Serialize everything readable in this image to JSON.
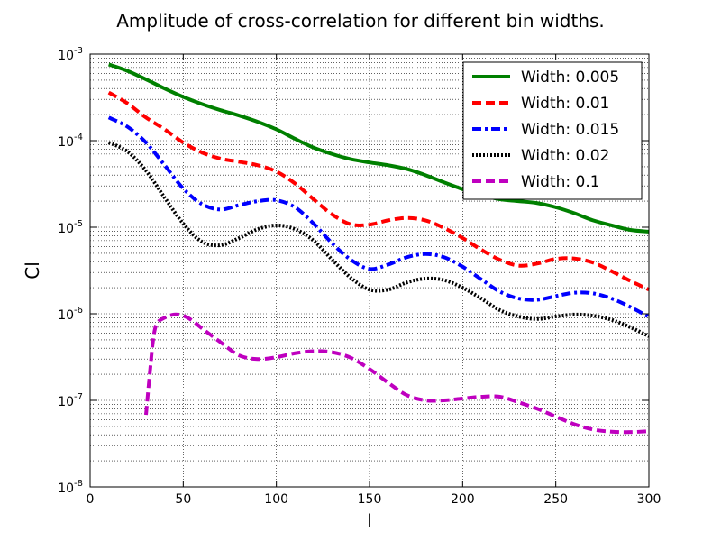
{
  "chart_data": {
    "type": "line",
    "title": "Amplitude of cross-correlation for different bin widths.",
    "xlabel": "l",
    "ylabel": "Cl",
    "xscale": "linear",
    "yscale": "log",
    "xlim": [
      0,
      300
    ],
    "ylim": [
      1e-08,
      0.001
    ],
    "grid": true,
    "legend_position": "top-right",
    "x_ticks": [
      0,
      50,
      100,
      150,
      200,
      250,
      300
    ],
    "x_tick_labels": [
      "0",
      "50",
      "100",
      "150",
      "200",
      "250",
      "300"
    ],
    "y_ticks": [
      {
        "value": 1e-08,
        "base": "10",
        "exp": "-8"
      },
      {
        "value": 1e-07,
        "base": "10",
        "exp": "-7"
      },
      {
        "value": 1e-06,
        "base": "10",
        "exp": "-6"
      },
      {
        "value": 1e-05,
        "base": "10",
        "exp": "-5"
      },
      {
        "value": 0.0001,
        "base": "10",
        "exp": "-4"
      },
      {
        "value": 0.001,
        "base": "10",
        "exp": "-3"
      }
    ],
    "series": [
      {
        "name": "Width: 0.005",
        "color": "#008000",
        "dash": "solid",
        "x": [
          10,
          20,
          30,
          40,
          50,
          60,
          70,
          80,
          90,
          100,
          110,
          120,
          130,
          140,
          150,
          160,
          170,
          180,
          190,
          200,
          210,
          220,
          230,
          240,
          250,
          260,
          270,
          280,
          290,
          300
        ],
        "y": [
          0.00076,
          0.00064,
          0.00051,
          0.0004,
          0.00032,
          0.000265,
          0.000225,
          0.000195,
          0.000165,
          0.000135,
          0.000105,
          8.3e-05,
          7e-05,
          6.1e-05,
          5.6e-05,
          5.2e-05,
          4.7e-05,
          4e-05,
          3.3e-05,
          2.75e-05,
          2.35e-05,
          2.1e-05,
          2e-05,
          1.9e-05,
          1.7e-05,
          1.45e-05,
          1.2e-05,
          1.05e-05,
          9.3e-06,
          8.9e-06
        ]
      },
      {
        "name": "Width: 0.01",
        "color": "#ff0000",
        "dash": "dashed",
        "x": [
          10,
          20,
          30,
          40,
          50,
          60,
          70,
          80,
          90,
          100,
          110,
          120,
          130,
          140,
          150,
          160,
          170,
          180,
          190,
          200,
          210,
          220,
          230,
          240,
          250,
          260,
          270,
          280,
          290,
          300
        ],
        "y": [
          0.00036,
          0.00027,
          0.000185,
          0.000135,
          9.5e-05,
          7.3e-05,
          6.2e-05,
          5.7e-05,
          5.2e-05,
          4.4e-05,
          3.2e-05,
          2.1e-05,
          1.4e-05,
          1.08e-05,
          1.07e-05,
          1.2e-05,
          1.28e-05,
          1.2e-05,
          9.8e-06,
          7.5e-06,
          5.5e-06,
          4.2e-06,
          3.6e-06,
          3.8e-06,
          4.3e-06,
          4.35e-06,
          3.9e-06,
          3.1e-06,
          2.4e-06,
          1.9e-06
        ]
      },
      {
        "name": "Width: 0.015",
        "color": "#0000ff",
        "dash": "dashdot",
        "x": [
          10,
          20,
          30,
          40,
          50,
          60,
          70,
          80,
          90,
          100,
          110,
          120,
          130,
          140,
          150,
          160,
          170,
          180,
          190,
          200,
          210,
          220,
          230,
          240,
          250,
          260,
          270,
          280,
          290,
          300
        ],
        "y": [
          0.000185,
          0.000145,
          9.5e-05,
          5.2e-05,
          2.8e-05,
          1.85e-05,
          1.6e-05,
          1.8e-05,
          2e-05,
          2.05e-05,
          1.7e-05,
          1.1e-05,
          6.5e-06,
          4.2e-06,
          3.3e-06,
          3.7e-06,
          4.5e-06,
          4.9e-06,
          4.5e-06,
          3.5e-06,
          2.5e-06,
          1.8e-06,
          1.5e-06,
          1.45e-06,
          1.6e-06,
          1.75e-06,
          1.72e-06,
          1.5e-06,
          1.2e-06,
          9.2e-07
        ]
      },
      {
        "name": "Width: 0.02",
        "color": "#000000",
        "dash": "dotted",
        "x": [
          10,
          20,
          30,
          40,
          50,
          60,
          70,
          80,
          90,
          100,
          110,
          120,
          130,
          140,
          150,
          160,
          170,
          180,
          190,
          200,
          210,
          220,
          230,
          240,
          250,
          260,
          270,
          280,
          290,
          300
        ],
        "y": [
          9.5e-05,
          7.5e-05,
          4.5e-05,
          2.2e-05,
          1.1e-05,
          6.8e-06,
          6.2e-06,
          7.5e-06,
          9.5e-06,
          1.05e-05,
          9.5e-06,
          7e-06,
          4.2e-06,
          2.6e-06,
          1.9e-06,
          1.9e-06,
          2.3e-06,
          2.55e-06,
          2.45e-06,
          2e-06,
          1.5e-06,
          1.1e-06,
          9.3e-07,
          8.7e-07,
          9.3e-07,
          9.8e-07,
          9.5e-07,
          8.5e-07,
          7e-07,
          5.5e-07
        ]
      },
      {
        "name": "Width: 0.1",
        "color": "#bf00bf",
        "dash": "dashed",
        "x": [
          30,
          32,
          34,
          36,
          40,
          45,
          50,
          55,
          60,
          70,
          80,
          90,
          100,
          110,
          120,
          130,
          140,
          150,
          160,
          170,
          180,
          190,
          200,
          210,
          220,
          230,
          240,
          250,
          260,
          270,
          280,
          290,
          300
        ],
        "y": [
          6.8e-08,
          2e-07,
          5.3e-07,
          7.8e-07,
          9e-07,
          9.8e-07,
          9.5e-07,
          8.3e-07,
          6.8e-07,
          4.7e-07,
          3.3e-07,
          3e-07,
          3.15e-07,
          3.5e-07,
          3.7e-07,
          3.6e-07,
          3.1e-07,
          2.3e-07,
          1.6e-07,
          1.15e-07,
          1e-07,
          1e-07,
          1.05e-07,
          1.1e-07,
          1.1e-07,
          9.5e-08,
          8e-08,
          6.5e-08,
          5.3e-08,
          4.6e-08,
          4.35e-08,
          4.3e-08,
          4.4e-08
        ]
      }
    ]
  }
}
